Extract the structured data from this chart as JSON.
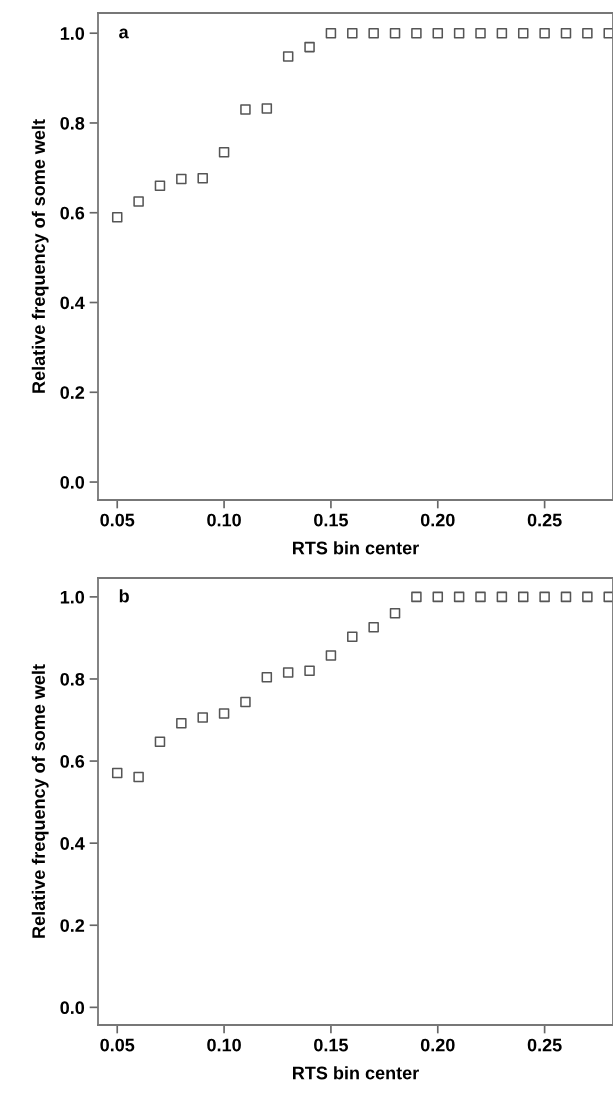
{
  "chart_data": [
    {
      "type": "scatter",
      "xlabel": "RTS bin center",
      "ylabel": "Relative frequency of some welt",
      "annotations": [
        "a"
      ],
      "marker": "square",
      "grid": false,
      "x": [
        0.05,
        0.06,
        0.07,
        0.08,
        0.09,
        0.1,
        0.11,
        0.12,
        0.13,
        0.14,
        0.15,
        0.16,
        0.17,
        0.18,
        0.19,
        0.2,
        0.21,
        0.22,
        0.23,
        0.24,
        0.25,
        0.26,
        0.27,
        0.28
      ],
      "series": [
        {
          "color": "#555555",
          "values": [
            0.59,
            0.625,
            0.66,
            0.675,
            0.677,
            0.735,
            0.83,
            0.832,
            0.948,
            0.969,
            1.0,
            1.0,
            1.0,
            1.0,
            1.0,
            1.0,
            1.0,
            1.0,
            1.0,
            1.0,
            1.0,
            1.0,
            1.0,
            1.0
          ]
        }
      ],
      "xlim": [
        0.041,
        0.282
      ],
      "ylim": [
        -0.04,
        1.045
      ],
      "xticks": [
        {
          "value": 0.05,
          "label": "0.05"
        },
        {
          "value": 0.1,
          "label": "0.10"
        },
        {
          "value": 0.15,
          "label": "0.15"
        },
        {
          "value": 0.2,
          "label": "0.20"
        },
        {
          "value": 0.25,
          "label": "0.25"
        }
      ],
      "yticks": [
        {
          "value": 0,
          "label": "0.0"
        },
        {
          "value": 0.2,
          "label": "0.2"
        },
        {
          "value": 0.4,
          "label": "0.4"
        },
        {
          "value": 0.6,
          "label": "0.6"
        },
        {
          "value": 0.8,
          "label": "0.8"
        },
        {
          "value": 1,
          "label": "1.0"
        }
      ]
    },
    {
      "type": "scatter",
      "xlabel": "RTS bin center",
      "ylabel": "Relative frequency of some welt",
      "annotations": [
        "b"
      ],
      "marker": "square",
      "grid": false,
      "x": [
        0.05,
        0.06,
        0.07,
        0.08,
        0.09,
        0.1,
        0.11,
        0.12,
        0.13,
        0.14,
        0.15,
        0.16,
        0.17,
        0.18,
        0.19,
        0.2,
        0.21,
        0.22,
        0.23,
        0.24,
        0.25,
        0.26,
        0.27,
        0.28
      ],
      "series": [
        {
          "color": "#555555",
          "values": [
            0.571,
            0.561,
            0.647,
            0.692,
            0.706,
            0.716,
            0.744,
            0.804,
            0.816,
            0.82,
            0.857,
            0.903,
            0.926,
            0.96,
            1.0,
            1.0,
            1.0,
            1.0,
            1.0,
            1.0,
            1.0,
            1.0,
            1.0,
            1.0
          ]
        }
      ],
      "xlim": [
        0.041,
        0.282
      ],
      "ylim": [
        -0.043,
        1.046
      ],
      "xticks": [
        {
          "value": 0.05,
          "label": "0.05"
        },
        {
          "value": 0.1,
          "label": "0.10"
        },
        {
          "value": 0.15,
          "label": "0.15"
        },
        {
          "value": 0.2,
          "label": "0.20"
        },
        {
          "value": 0.25,
          "label": "0.25"
        }
      ],
      "yticks": [
        {
          "value": 0,
          "label": "0.0"
        },
        {
          "value": 0.2,
          "label": "0.2"
        },
        {
          "value": 0.4,
          "label": "0.4"
        },
        {
          "value": 0.6,
          "label": "0.6"
        },
        {
          "value": 0.8,
          "label": "0.8"
        },
        {
          "value": 1,
          "label": "1.0"
        }
      ]
    }
  ]
}
